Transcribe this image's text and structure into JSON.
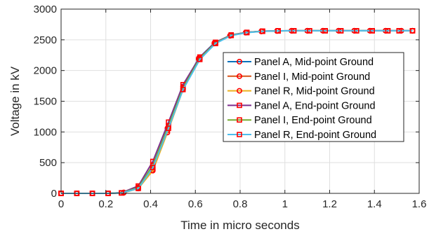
{
  "chart_data": {
    "type": "line",
    "title": "",
    "xlabel": "Time in micro seconds",
    "ylabel": "Voltage in kV",
    "xlim": [
      0,
      1.6
    ],
    "ylim": [
      0,
      3000
    ],
    "xticks": [
      0,
      0.2,
      0.4,
      0.6,
      0.8,
      1,
      1.2,
      1.4,
      1.6
    ],
    "xtick_labels": [
      "0",
      "0.2",
      "0.4",
      "0.6",
      "0.8",
      "1",
      "1.2",
      "1.4",
      "1.6"
    ],
    "yticks": [
      0,
      500,
      1000,
      1500,
      2000,
      2500,
      3000
    ],
    "ytick_labels": [
      "0",
      "500",
      "1000",
      "1500",
      "2000",
      "2500",
      "3000"
    ],
    "grid": true,
    "legend_position": "middle-right",
    "marker_color": "#ff0000",
    "series": [
      {
        "name": "Panel A, Mid-point Ground",
        "color": "#0072bd",
        "marker": "circle",
        "x": [
          0,
          0.07,
          0.14,
          0.21,
          0.28,
          0.345,
          0.41,
          0.475,
          0.545,
          0.615,
          0.685,
          0.755,
          0.825,
          0.895,
          0.965,
          1.03,
          1.1,
          1.17,
          1.24,
          1.31,
          1.38,
          1.45,
          1.52,
          1.57
        ],
        "y": [
          0,
          0,
          0,
          0,
          15,
          100,
          420,
          1060,
          1740,
          2200,
          2450,
          2570,
          2620,
          2640,
          2645,
          2648,
          2648,
          2648,
          2648,
          2648,
          2648,
          2648,
          2648,
          2648
        ]
      },
      {
        "name": "Panel I, Mid-point Ground",
        "color": "#d95319",
        "marker": "circle",
        "x": [
          0,
          0.07,
          0.14,
          0.21,
          0.28,
          0.345,
          0.41,
          0.475,
          0.545,
          0.615,
          0.685,
          0.755,
          0.825,
          0.895,
          0.965,
          1.03,
          1.1,
          1.17,
          1.24,
          1.31,
          1.38,
          1.45,
          1.52,
          1.57
        ],
        "y": [
          0,
          0,
          0,
          0,
          12,
          90,
          390,
          1020,
          1710,
          2190,
          2445,
          2568,
          2618,
          2638,
          2645,
          2648,
          2648,
          2648,
          2648,
          2648,
          2648,
          2648,
          2648,
          2648
        ]
      },
      {
        "name": "Panel R, Mid-point Ground",
        "color": "#edb120",
        "marker": "circle",
        "x": [
          0,
          0.07,
          0.14,
          0.21,
          0.28,
          0.345,
          0.41,
          0.475,
          0.545,
          0.615,
          0.685,
          0.755,
          0.825,
          0.895,
          0.965,
          1.03,
          1.1,
          1.17,
          1.24,
          1.31,
          1.38,
          1.45,
          1.52,
          1.57
        ],
        "y": [
          0,
          0,
          0,
          0,
          10,
          80,
          370,
          990,
          1690,
          2180,
          2440,
          2565,
          2616,
          2637,
          2644,
          2647,
          2648,
          2648,
          2648,
          2648,
          2648,
          2648,
          2648,
          2648
        ]
      },
      {
        "name": "Panel A, End-point Ground",
        "color": "#7e2f8e",
        "marker": "square",
        "x": [
          0,
          0.07,
          0.14,
          0.21,
          0.27,
          0.345,
          0.41,
          0.48,
          0.545,
          0.62,
          0.69,
          0.76,
          0.83,
          0.9,
          0.97,
          1.04,
          1.11,
          1.18,
          1.25,
          1.32,
          1.39,
          1.46,
          1.51,
          1.57
        ],
        "y": [
          0,
          0,
          0,
          0,
          10,
          120,
          520,
          1160,
          1770,
          2220,
          2460,
          2580,
          2622,
          2641,
          2646,
          2648,
          2648,
          2648,
          2648,
          2648,
          2648,
          2648,
          2648,
          2648
        ]
      },
      {
        "name": "Panel I, End-point Ground",
        "color": "#77ac30",
        "marker": "square",
        "x": [
          0,
          0.07,
          0.14,
          0.21,
          0.27,
          0.345,
          0.41,
          0.48,
          0.545,
          0.62,
          0.69,
          0.76,
          0.83,
          0.9,
          0.97,
          1.04,
          1.11,
          1.18,
          1.25,
          1.32,
          1.39,
          1.46,
          1.51,
          1.57
        ],
        "y": [
          0,
          0,
          0,
          0,
          8,
          95,
          460,
          1100,
          1720,
          2200,
          2450,
          2575,
          2620,
          2640,
          2646,
          2648,
          2648,
          2648,
          2648,
          2648,
          2648,
          2648,
          2648,
          2648
        ]
      },
      {
        "name": "Panel R, End-point Ground",
        "color": "#4dbeee",
        "marker": "square",
        "x": [
          0,
          0.07,
          0.14,
          0.21,
          0.27,
          0.345,
          0.41,
          0.48,
          0.545,
          0.62,
          0.69,
          0.76,
          0.83,
          0.9,
          0.97,
          1.04,
          1.11,
          1.18,
          1.25,
          1.32,
          1.39,
          1.46,
          1.51,
          1.57
        ],
        "y": [
          0,
          0,
          0,
          0,
          6,
          80,
          420,
          1060,
          1690,
          2180,
          2440,
          2570,
          2617,
          2638,
          2645,
          2648,
          2648,
          2648,
          2648,
          2648,
          2648,
          2648,
          2648,
          2648
        ]
      }
    ]
  }
}
